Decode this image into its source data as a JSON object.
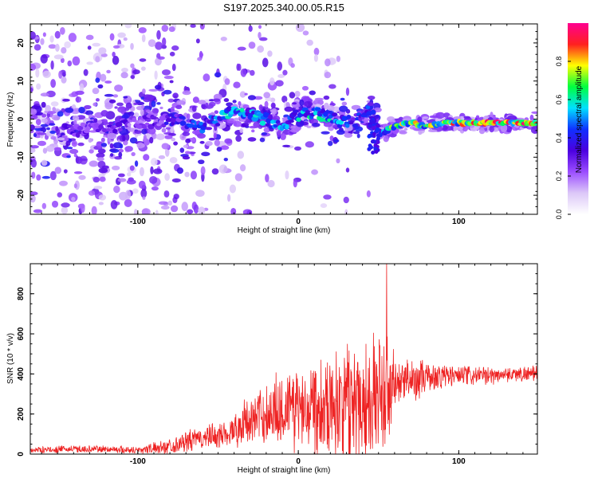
{
  "title": "S197.2025.340.00.05.R15",
  "chart_data": [
    {
      "type": "heatmap",
      "name": "spectrogram",
      "xlabel": "Height of straight line (km)",
      "ylabel": "Frequency (Hz)",
      "xlim": [
        -167,
        149
      ],
      "ylim": [
        -25,
        25
      ],
      "xticks": [
        -100,
        0,
        100
      ],
      "yticks": [
        -20,
        -10,
        0,
        10,
        20
      ],
      "colorbar": {
        "label": "Normalized spectral amplitude",
        "range": [
          0,
          1
        ],
        "ticks": [
          0.0,
          0.2,
          0.4,
          0.6,
          0.8
        ],
        "colors": [
          "#ffffff",
          "#dcc8f8",
          "#9b4dff",
          "#4b00e0",
          "#1030ff",
          "#00e0ff",
          "#00ff40",
          "#ffff00",
          "#ff2020",
          "#ff0090"
        ]
      },
      "ridge": {
        "x": [
          -140,
          -120,
          -100,
          -80,
          -70,
          -60,
          -50,
          -40,
          -30,
          -20,
          -10,
          0,
          10,
          20,
          30,
          40,
          45,
          50,
          60,
          70,
          80,
          90,
          100,
          110,
          120,
          130,
          140,
          149
        ],
        "freq": [
          -3,
          -2,
          -1,
          0,
          -1,
          -2,
          0,
          2,
          1,
          0,
          -2,
          1,
          2,
          0,
          -1,
          0,
          3,
          -4,
          -2,
          -1,
          -2,
          -1,
          -1,
          -1,
          -1,
          -1,
          -1,
          -1
        ],
        "amplitude": [
          0.35,
          0.3,
          0.3,
          0.35,
          0.4,
          0.45,
          0.5,
          0.55,
          0.55,
          0.5,
          0.5,
          0.55,
          0.55,
          0.55,
          0.5,
          0.45,
          0.4,
          0.45,
          0.7,
          0.75,
          0.7,
          0.75,
          0.8,
          0.85,
          0.9,
          0.85,
          0.9,
          0.85
        ]
      }
    },
    {
      "type": "line",
      "name": "snr",
      "xlabel": "Height of straight line (km)",
      "ylabel": "SNR (10 * v/v)",
      "xlim": [
        -167,
        149
      ],
      "ylim": [
        0,
        950
      ],
      "xticks": [
        -100,
        0,
        100
      ],
      "yticks": [
        0,
        200,
        400,
        600,
        800
      ],
      "color": "#ee2222",
      "envelope": {
        "x": [
          -167,
          -140,
          -120,
          -100,
          -90,
          -80,
          -70,
          -60,
          -50,
          -40,
          -30,
          -20,
          -10,
          0,
          10,
          20,
          30,
          35,
          40,
          50,
          55,
          60,
          70,
          80,
          90,
          100,
          110,
          120,
          130,
          149
        ],
        "mean": [
          20,
          25,
          25,
          20,
          30,
          40,
          60,
          80,
          90,
          120,
          170,
          200,
          230,
          240,
          260,
          260,
          260,
          280,
          290,
          290,
          300,
          340,
          370,
          380,
          390,
          390,
          390,
          390,
          400,
          400
        ],
        "amplitude": [
          15,
          20,
          20,
          20,
          30,
          40,
          55,
          65,
          70,
          90,
          130,
          170,
          210,
          240,
          260,
          280,
          320,
          360,
          340,
          330,
          320,
          180,
          110,
          90,
          70,
          60,
          50,
          45,
          40,
          40
        ]
      },
      "peak": {
        "x": 55,
        "y": 950
      }
    }
  ]
}
